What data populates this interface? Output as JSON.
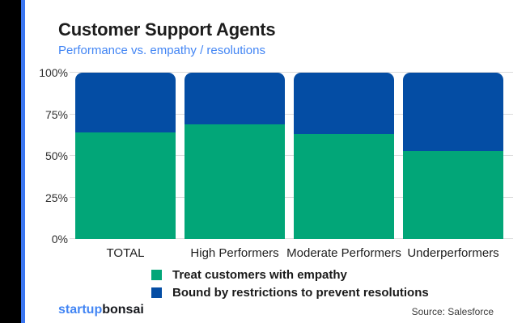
{
  "page": {
    "title": "Customer Support Agents",
    "subtitle": "Performance vs. empathy / resolutions"
  },
  "chart_data": {
    "type": "bar",
    "stacked": true,
    "title": "Customer Support Agents",
    "subtitle": "Performance vs. empathy / resolutions",
    "categories": [
      "TOTAL",
      "High Performers",
      "Moderate Performers",
      "Underperformers"
    ],
    "series": [
      {
        "name": "Treat customers with empathy",
        "color": "#02A678",
        "position": "bottom",
        "values": [
          64,
          69,
          63,
          53
        ]
      },
      {
        "name": "Bound by restrictions to prevent resolutions",
        "color": "#044DA4",
        "position": "top",
        "values": [
          36,
          31,
          37,
          47
        ]
      }
    ],
    "unit": "%",
    "ylim": [
      0,
      100
    ],
    "y_ticks": [
      "100%",
      "75%",
      "50%",
      "25%",
      "0%"
    ],
    "grid": "horizontal",
    "legend_position": "bottom"
  },
  "footer": {
    "brand_blue": "startup",
    "brand_dark": "bonsai",
    "source": "Source: Salesforce"
  },
  "theme": {
    "black_bar": "#000000",
    "stripe_blue": "#3B76F0",
    "subtitle_blue": "#4285F4",
    "text_dark": "#1d1d1d",
    "grid_gray": "#dcdcdc"
  }
}
